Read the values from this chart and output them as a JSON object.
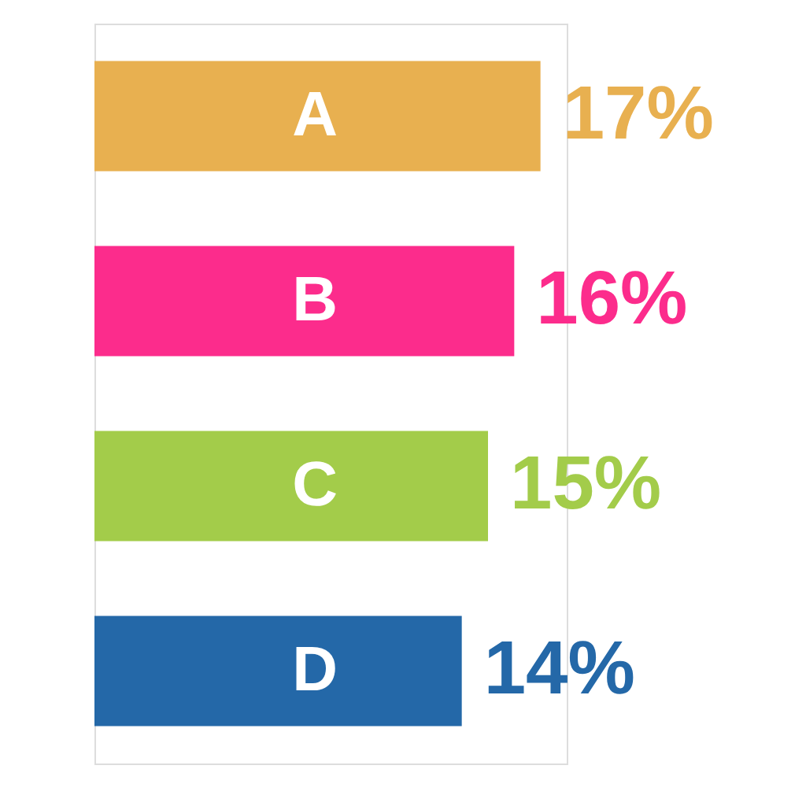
{
  "chart_data": {
    "type": "bar",
    "orientation": "horizontal",
    "categories": [
      "A",
      "B",
      "C",
      "D"
    ],
    "values": [
      17,
      16,
      15,
      14
    ],
    "colors": [
      "#e8b050",
      "#fc2c8c",
      "#a3cc4a",
      "#2468a8"
    ],
    "value_labels": [
      "17%",
      "16%",
      "15%",
      "14%"
    ],
    "grid": false
  }
}
